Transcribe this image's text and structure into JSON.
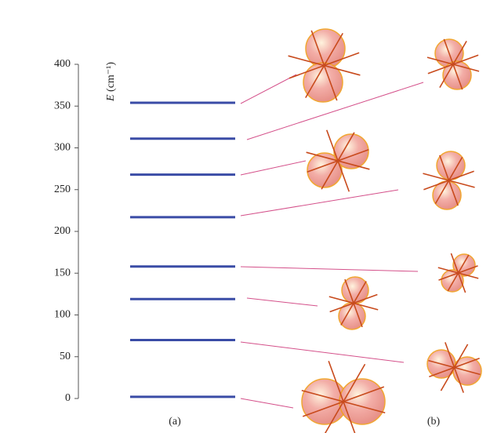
{
  "chart_data": {
    "type": "levels",
    "ylabel": {
      "symbol": "E",
      "unit": "(cm⁻¹)"
    },
    "values": [
      354,
      311,
      268,
      217,
      158,
      119,
      70,
      2
    ],
    "color": "#3a4ca6",
    "ylim": [
      0,
      400
    ],
    "yticks": [
      0,
      50,
      100,
      150,
      200,
      250,
      300,
      350,
      400
    ],
    "panel_labels": [
      "(a)",
      "(b)"
    ]
  }
}
